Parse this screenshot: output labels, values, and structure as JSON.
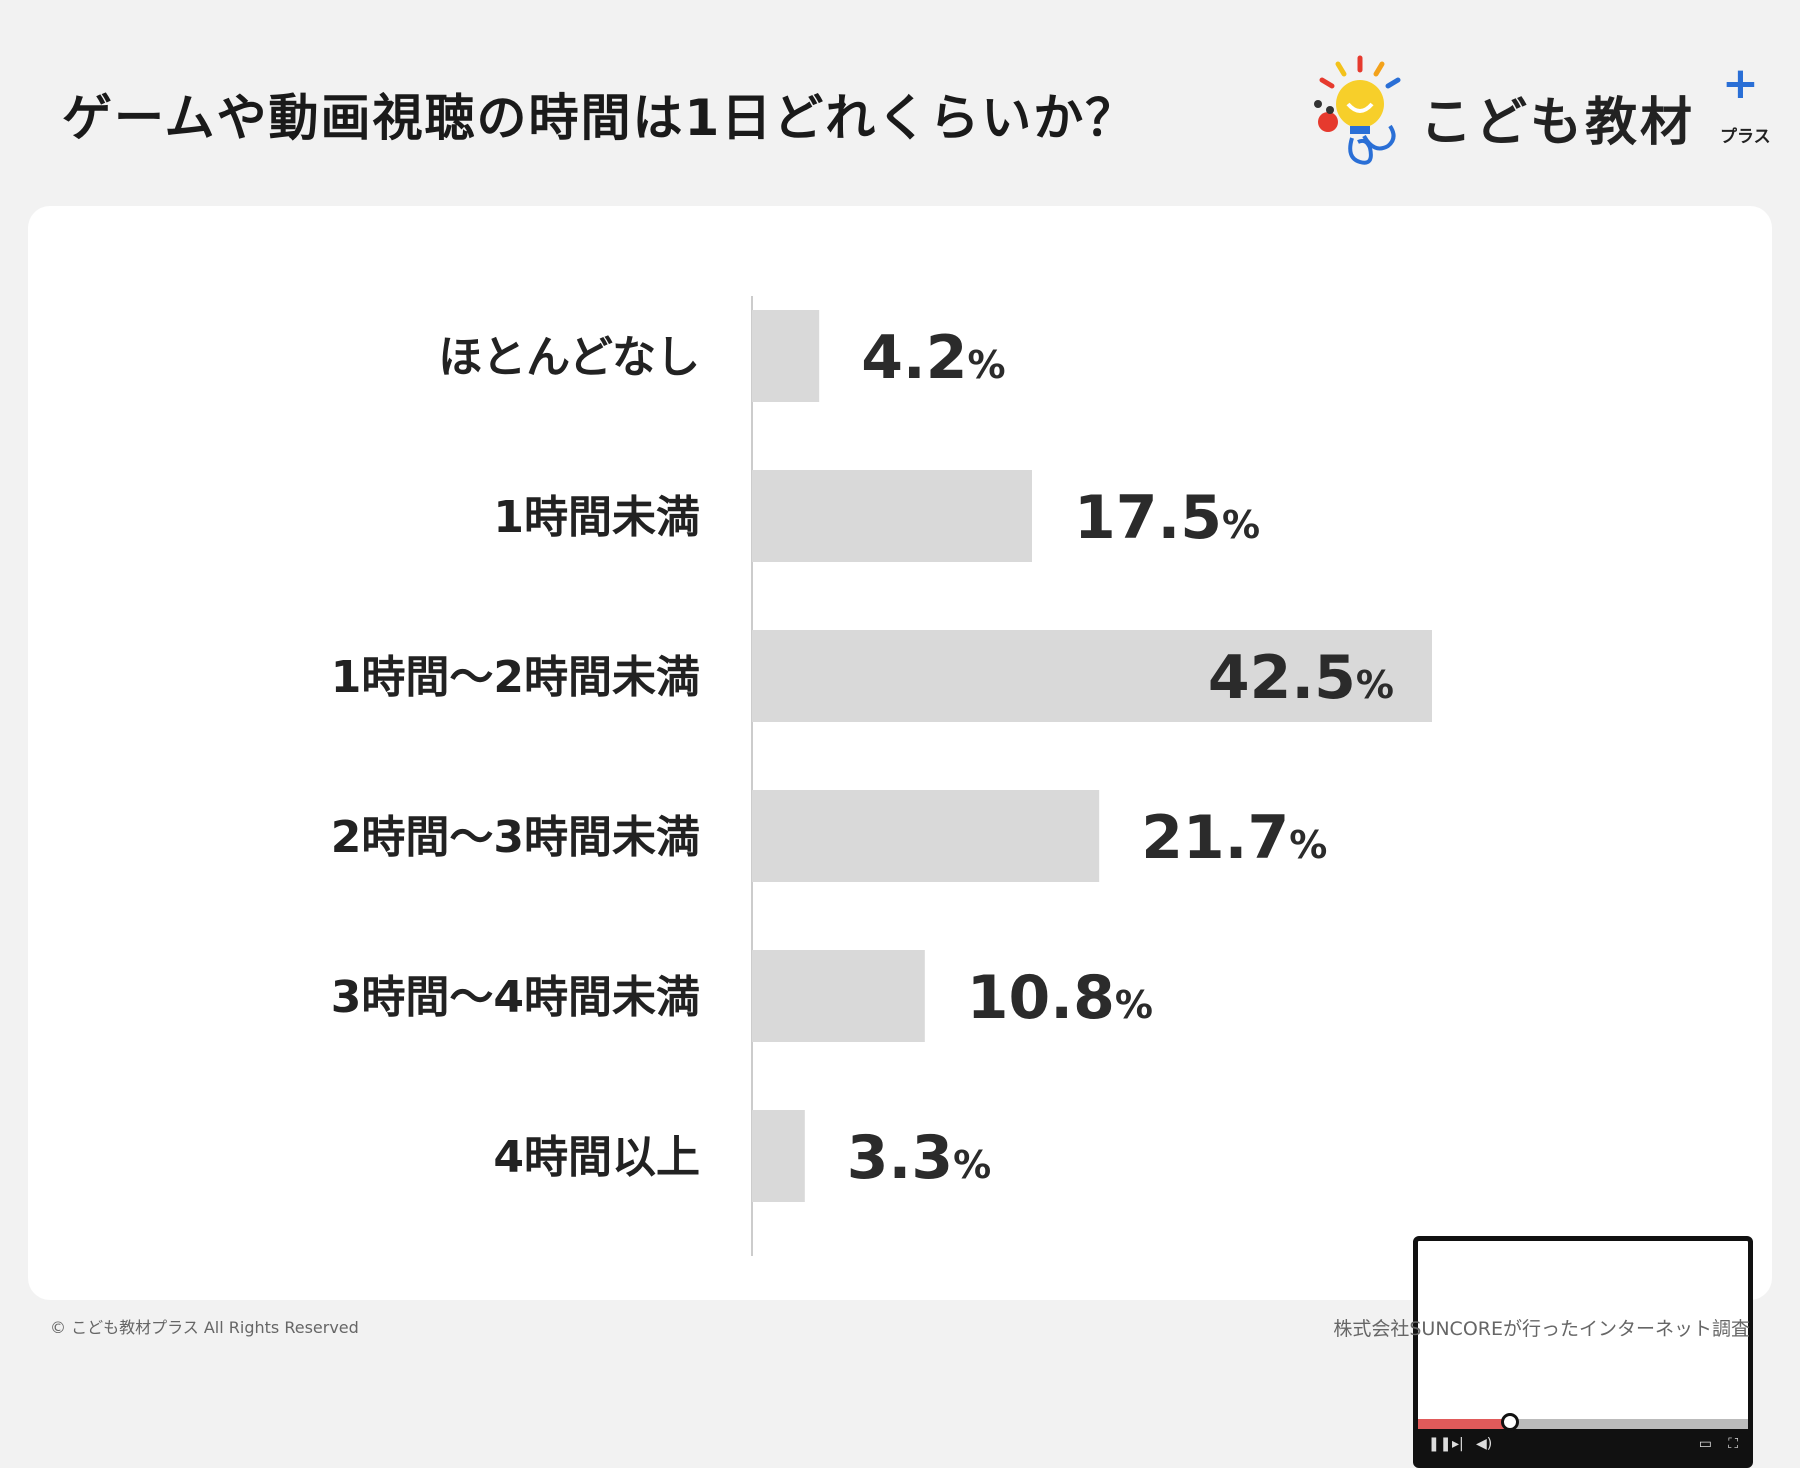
{
  "header": {
    "title": "ゲームや動画視聴の時間は1日どれくらいか？",
    "logo_text": "こども教材",
    "logo_sub": "プラス"
  },
  "chart_data": {
    "type": "bar",
    "orientation": "horizontal",
    "categories": [
      "ほとんどなし",
      "1時間未満",
      "1時間〜2時間未満",
      "2時間〜3時間未満",
      "3時間〜4時間未満",
      "4時間以上"
    ],
    "values": [
      4.2,
      17.5,
      42.5,
      21.7,
      10.8,
      3.3
    ],
    "value_labels": [
      "4.2",
      "17.5",
      "42.5",
      "21.7",
      "10.8",
      "3.3"
    ],
    "unit": "%",
    "xlim": [
      0,
      50
    ],
    "bar_color": "#d9d9d9",
    "grid": false,
    "highlight_max_label_inside": true
  },
  "video_player": {
    "progress": 0.28,
    "colors": {
      "progress": "#e05a5a",
      "frame": "#111111"
    }
  },
  "footer": {
    "copyright": "© こども教材プラス All Rights Reserved",
    "source": "株式会社SUNCOREが行ったインターネット調査"
  },
  "icons": [
    "lightbulb-logo-icon",
    "pause-icon",
    "next-icon",
    "volume-icon",
    "miniplayer-icon",
    "fullscreen-icon"
  ]
}
